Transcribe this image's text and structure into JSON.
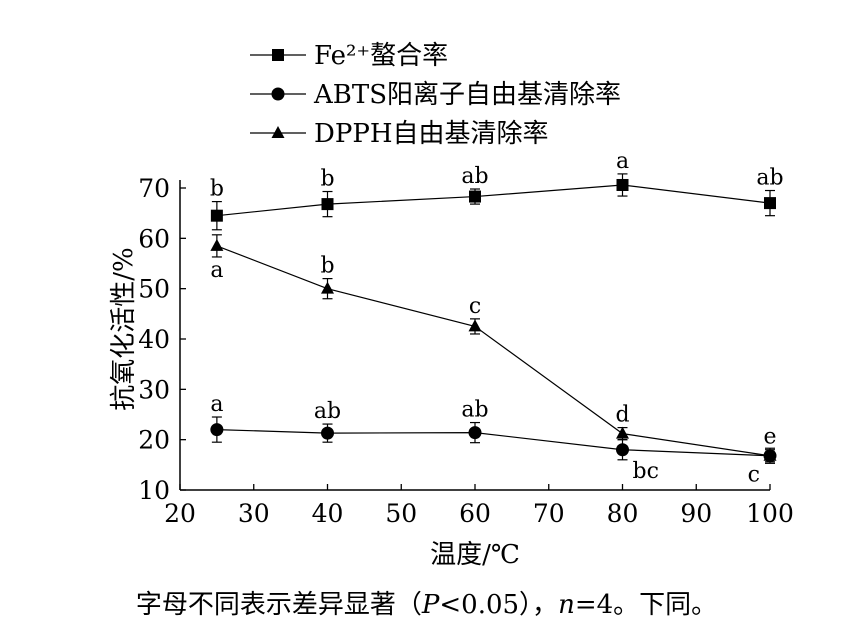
{
  "chart_data": {
    "type": "line",
    "ylabel": "抗氧化活性/%",
    "xlabel": "温度/℃",
    "xlim": [
      20,
      100
    ],
    "ylim": [
      10,
      70
    ],
    "xticks": [
      20,
      30,
      40,
      50,
      60,
      70,
      80,
      90,
      100
    ],
    "yticks": [
      10,
      20,
      30,
      40,
      50,
      60,
      70
    ],
    "legend_position": "top",
    "grid": false,
    "x": [
      25,
      40,
      60,
      80,
      100
    ],
    "series": [
      {
        "name": "Fe²⁺螯合率",
        "marker": "square",
        "values": [
          64.5,
          66.8,
          68.3,
          70.6,
          67.0
        ],
        "errors": [
          2.8,
          2.5,
          1.5,
          2.2,
          2.5
        ],
        "letters": [
          "b",
          "b",
          "ab",
          "a",
          "ab"
        ],
        "letter_pos": [
          "above",
          "above",
          "above",
          "above",
          "above"
        ]
      },
      {
        "name": "ABTS阳离子自由基清除率",
        "marker": "circle",
        "values": [
          22.0,
          21.3,
          21.4,
          18.0,
          16.8
        ],
        "errors": [
          2.5,
          1.8,
          2.0,
          2.0,
          1.5
        ],
        "letters": [
          "a",
          "ab",
          "ab",
          "bc",
          "c"
        ],
        "letter_pos": [
          "above",
          "above",
          "above",
          "below-right",
          "below-left"
        ]
      },
      {
        "name": "DPPH自由基清除率",
        "marker": "triangle",
        "values": [
          58.5,
          50.0,
          42.5,
          21.2,
          16.8
        ],
        "errors": [
          2.2,
          2.0,
          1.5,
          1.2,
          1.2
        ],
        "letters": [
          "a",
          "b",
          "c",
          "d",
          "e"
        ],
        "letter_pos": [
          "below",
          "above",
          "above",
          "above",
          "above"
        ]
      }
    ]
  },
  "caption": {
    "part1": "字母不同表示差异显著（",
    "p_symbol": "P",
    "part2": "<0.05），",
    "n_symbol": "n",
    "part3": "=4。下同。"
  }
}
